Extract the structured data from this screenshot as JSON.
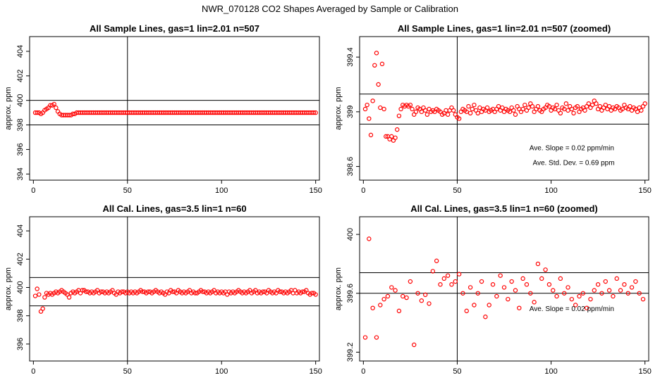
{
  "page_title": "NWR_070128  CO2 Shapes Averaged by Sample or Calibration",
  "colors": {
    "points": "#ff0000",
    "lines": "#000000"
  },
  "chart_data": [
    {
      "type": "scatter",
      "title": "All Sample Lines, gas=1 lin=2.01 n=507",
      "ylabel": "approx. ppm",
      "xlim": [
        -2,
        152
      ],
      "ylim": [
        393.5,
        405.2
      ],
      "xticks": [
        0,
        50,
        100,
        150
      ],
      "yticks": [
        394,
        396,
        398,
        400,
        402,
        404
      ],
      "hlines": [
        398.0,
        400.0
      ],
      "vline": 50,
      "grid": false,
      "x_start": 1,
      "x_step": 1,
      "values": [
        399.0,
        399.0,
        399.0,
        398.9,
        399.0,
        399.2,
        399.3,
        399.4,
        399.6,
        399.6,
        399.7,
        399.4,
        399.1,
        398.9,
        398.8,
        398.8,
        398.8,
        398.8,
        398.8,
        398.8,
        398.9,
        398.9,
        399.0,
        399.0,
        399.0,
        399.0,
        399.0,
        399.0,
        399.0,
        399.0,
        399.0,
        399.0,
        399.0,
        399.0,
        399.0,
        399.0,
        399.0,
        399.0,
        399.0,
        399.0,
        399.0,
        399.0,
        399.0,
        399.0,
        399.0,
        399.0,
        399.0,
        399.0,
        399.0,
        399.0,
        399.0,
        399.0,
        399.0,
        399.0,
        399.0,
        399.0,
        399.0,
        399.0,
        399.0,
        399.0,
        399.0,
        399.0,
        399.0,
        399.0,
        399.0,
        399.0,
        399.0,
        399.0,
        399.0,
        399.0,
        399.0,
        399.0,
        399.0,
        399.0,
        399.0,
        399.0,
        399.0,
        399.0,
        399.0,
        399.0,
        399.0,
        399.0,
        399.0,
        399.0,
        399.0,
        399.0,
        399.0,
        399.0,
        399.0,
        399.0,
        399.0,
        399.0,
        399.0,
        399.0,
        399.0,
        399.0,
        399.0,
        399.0,
        399.0,
        399.0,
        399.0,
        399.0,
        399.0,
        399.0,
        399.0,
        399.0,
        399.0,
        399.0,
        399.0,
        399.0,
        399.0,
        399.0,
        399.0,
        399.0,
        399.0,
        399.0,
        399.0,
        399.0,
        399.0,
        399.0,
        399.0,
        399.0,
        399.0,
        399.0,
        399.0,
        399.0,
        399.0,
        399.0,
        399.0,
        399.0,
        399.0,
        399.0,
        399.0,
        399.0,
        399.0,
        399.0,
        399.0,
        399.0,
        399.0,
        399.0,
        399.0,
        399.0,
        399.0,
        399.0,
        399.0,
        399.0,
        399.0,
        399.0,
        399.0,
        399.0
      ],
      "annotations": []
    },
    {
      "type": "scatter",
      "title": "All Sample Lines, gas=1 lin=2.01 n=507 (zoomed)",
      "ylabel": "approx. ppm",
      "xlim": [
        -2,
        152
      ],
      "ylim": [
        398.5,
        399.55
      ],
      "xticks": [
        0,
        50,
        100,
        150
      ],
      "yticks": [
        398.6,
        399.0,
        399.4
      ],
      "hlines": [
        398.91,
        399.13
      ],
      "vline": 50,
      "grid": false,
      "x_start": 1,
      "x_step": 1,
      "values": [
        399.02,
        399.05,
        398.95,
        398.83,
        399.08,
        399.34,
        399.43,
        399.2,
        399.03,
        399.35,
        399.02,
        398.82,
        398.82,
        398.8,
        398.82,
        398.79,
        398.81,
        398.87,
        398.97,
        399.02,
        399.05,
        399.04,
        399.05,
        399.04,
        399.05,
        399.02,
        398.98,
        399.0,
        399.03,
        399.02,
        399.0,
        399.03,
        399.01,
        398.98,
        399.02,
        399.0,
        399.01,
        399.0,
        399.02,
        399.01,
        399.0,
        398.98,
        398.99,
        399.01,
        398.98,
        399.01,
        399.03,
        399.01,
        398.98,
        398.96,
        398.95,
        399.0,
        399.02,
        399.01,
        399.0,
        399.04,
        398.99,
        399.02,
        399.05,
        399.01,
        398.99,
        399.03,
        399.0,
        399.02,
        399.01,
        399.03,
        399.0,
        399.01,
        399.02,
        399.0,
        399.02,
        399.04,
        399.01,
        399.03,
        399.0,
        399.02,
        399.01,
        399.0,
        399.03,
        399.01,
        398.98,
        399.04,
        399.02,
        399.0,
        399.02,
        399.05,
        399.01,
        399.03,
        399.06,
        399.04,
        399.0,
        399.02,
        399.04,
        399.01,
        399.0,
        399.02,
        399.03,
        399.05,
        399.04,
        399.01,
        399.03,
        399.02,
        399.05,
        399.01,
        398.99,
        399.03,
        399.02,
        399.06,
        399.01,
        399.04,
        399.02,
        398.99,
        399.03,
        399.04,
        399.0,
        399.02,
        399.03,
        399.01,
        399.04,
        399.06,
        399.03,
        399.05,
        399.08,
        399.06,
        399.02,
        399.04,
        399.01,
        399.03,
        399.05,
        399.02,
        399.04,
        399.01,
        399.03,
        399.02,
        399.04,
        399.03,
        399.01,
        399.02,
        399.05,
        399.03,
        399.02,
        399.04,
        399.01,
        399.03,
        399.02,
        399.0,
        399.03,
        399.01,
        399.04,
        399.06
      ],
      "annotations": [
        {
          "text": "Ave. Slope =  0.02  ppm/min",
          "x": 111,
          "y": 398.72
        },
        {
          "text": "Ave. Std. Dev. =  0.69  ppm",
          "x": 112,
          "y": 398.61
        }
      ]
    },
    {
      "type": "scatter",
      "title": "All Cal. Lines, gas=3.5 lin=1 n=60",
      "ylabel": "approx. ppm",
      "xlim": [
        -2,
        152
      ],
      "ylim": [
        394.8,
        405.0
      ],
      "xticks": [
        0,
        50,
        100,
        150
      ],
      "yticks": [
        396,
        398,
        400,
        402,
        404
      ],
      "hlines": [
        398.7,
        400.7
      ],
      "vline": 50,
      "grid": false,
      "x_start": 1,
      "x_step": 1,
      "values": [
        399.4,
        399.9,
        399.5,
        398.3,
        398.5,
        399.3,
        399.6,
        399.5,
        399.6,
        399.5,
        399.6,
        399.7,
        399.6,
        399.7,
        399.8,
        399.7,
        399.6,
        399.5,
        399.3,
        399.6,
        399.7,
        399.6,
        399.7,
        399.8,
        399.6,
        399.8,
        399.8,
        399.7,
        399.7,
        399.6,
        399.7,
        399.6,
        399.7,
        399.8,
        399.6,
        399.7,
        399.7,
        399.6,
        399.7,
        399.6,
        399.7,
        399.8,
        399.6,
        399.5,
        399.7,
        399.6,
        399.7,
        399.7,
        399.6,
        399.7,
        399.6,
        399.7,
        399.6,
        399.7,
        399.6,
        399.7,
        399.8,
        399.7,
        399.7,
        399.6,
        399.7,
        399.7,
        399.6,
        399.7,
        399.8,
        399.7,
        399.6,
        399.7,
        399.6,
        399.5,
        399.7,
        399.6,
        399.8,
        399.7,
        399.7,
        399.6,
        399.8,
        399.7,
        399.6,
        399.7,
        399.6,
        399.7,
        399.8,
        399.6,
        399.7,
        399.6,
        399.6,
        399.7,
        399.8,
        399.7,
        399.7,
        399.6,
        399.7,
        399.6,
        399.7,
        399.8,
        399.6,
        399.7,
        399.6,
        399.7,
        399.6,
        399.7,
        399.5,
        399.7,
        399.6,
        399.7,
        399.6,
        399.7,
        399.8,
        399.7,
        399.6,
        399.7,
        399.6,
        399.7,
        399.8,
        399.6,
        399.7,
        399.8,
        399.6,
        399.7,
        399.6,
        399.7,
        399.7,
        399.6,
        399.8,
        399.7,
        399.6,
        399.7,
        399.6,
        399.8,
        399.7,
        399.7,
        399.6,
        399.7,
        399.6,
        399.7,
        399.8,
        399.6,
        399.8,
        399.6,
        399.7,
        399.6,
        399.7,
        399.7,
        399.8,
        399.6,
        399.5,
        399.6,
        399.6,
        399.5
      ],
      "annotations": []
    },
    {
      "type": "scatter",
      "title": "All Cal. Lines, gas=3.5 lin=1 n=60 (zoomed)",
      "ylabel": "approx. ppm",
      "xlim": [
        -2,
        152
      ],
      "ylim": [
        399.14,
        400.12
      ],
      "xticks": [
        0,
        50,
        100,
        150
      ],
      "yticks": [
        399.2,
        399.6,
        400.0
      ],
      "hlines": [
        399.6,
        399.74
      ],
      "vline": 50,
      "grid": false,
      "x_start": 1,
      "x_step": 2,
      "values": [
        399.3,
        399.97,
        399.5,
        399.3,
        399.52,
        399.56,
        399.58,
        399.64,
        399.62,
        399.48,
        399.58,
        399.57,
        399.68,
        399.25,
        399.6,
        399.55,
        399.59,
        399.53,
        399.75,
        399.82,
        399.66,
        399.7,
        399.72,
        399.66,
        399.68,
        399.73,
        399.6,
        399.48,
        399.64,
        399.52,
        399.6,
        399.68,
        399.44,
        399.52,
        399.66,
        399.58,
        399.72,
        399.64,
        399.56,
        399.68,
        399.62,
        399.5,
        399.7,
        399.66,
        399.6,
        399.54,
        399.8,
        399.7,
        399.76,
        399.66,
        399.62,
        399.58,
        399.7,
        399.6,
        399.64,
        399.56,
        399.52,
        399.58,
        399.6,
        399.5,
        399.56,
        399.62,
        399.66,
        399.6,
        399.68,
        399.62,
        399.58,
        399.7,
        399.62,
        399.66,
        399.6,
        399.64,
        399.68,
        399.6,
        399.56
      ],
      "annotations": [
        {
          "text": "Ave. Slope =  0.02  ppm/min",
          "x": 111,
          "y": 399.48
        }
      ]
    }
  ]
}
